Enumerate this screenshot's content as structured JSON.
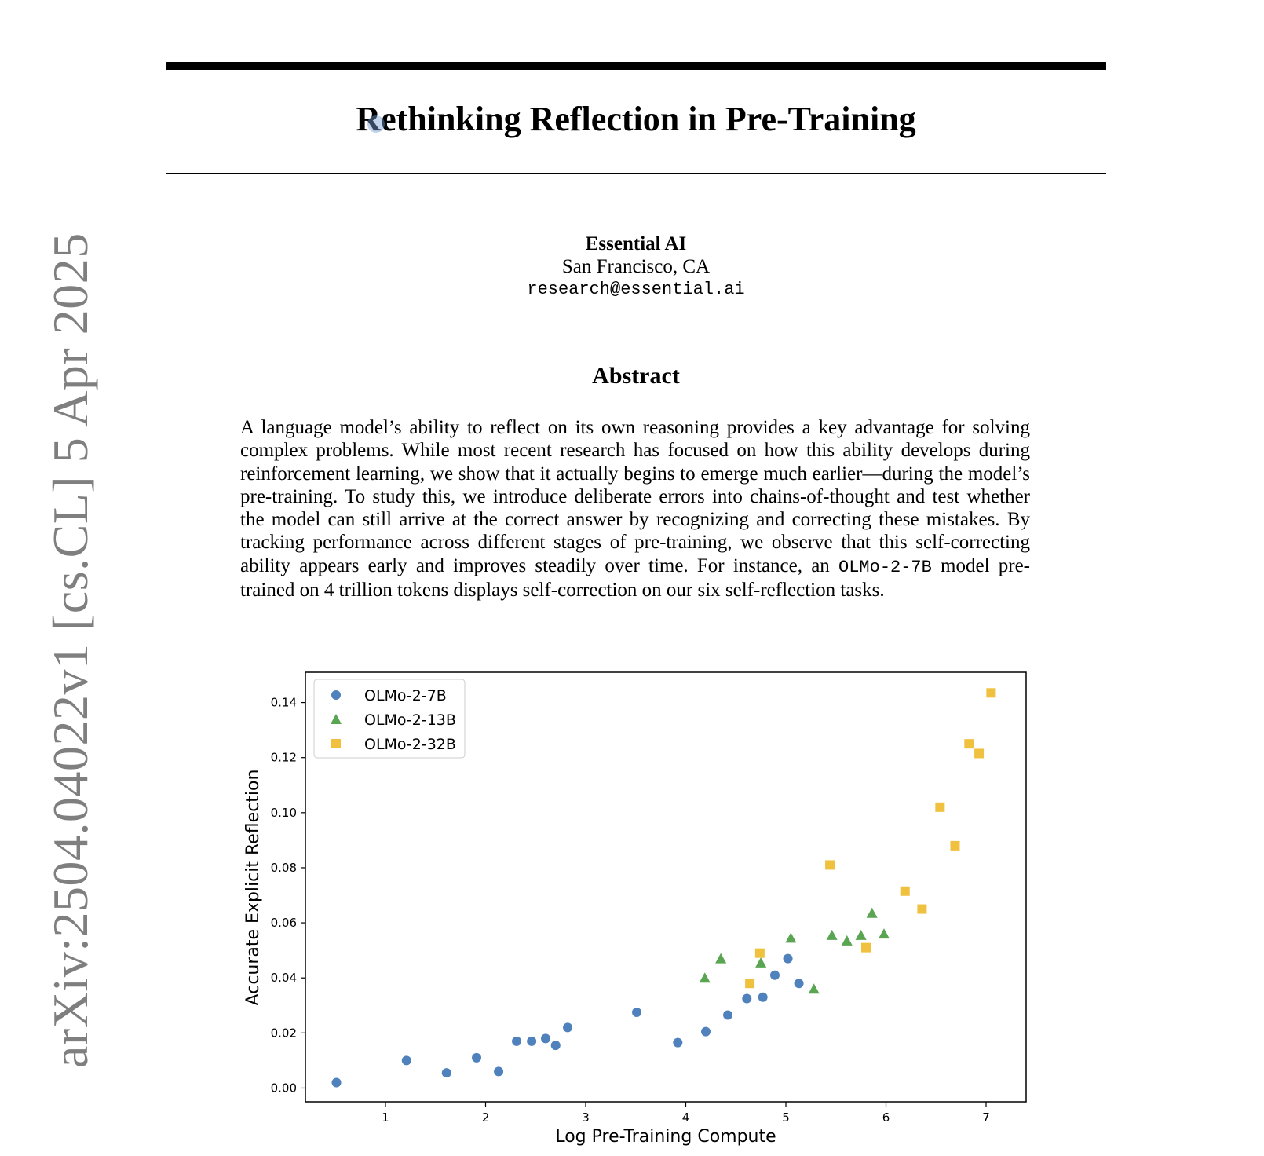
{
  "paper": {
    "title": "Rethinking Reflection in Pre-Training",
    "author_org": "Essential AI",
    "author_location": "San Francisco, CA",
    "author_email": "research@essential.ai",
    "abstract_heading": "Abstract",
    "abstract_part1": "A language model’s ability to reflect on its own reasoning provides a key advantage for solving complex problems. While most recent research has focused on how this ability develops during reinforcement learning, we show that it actually begins to emerge much earlier—during the model’s pre-training. To study this, we introduce deliberate errors into chains-of-thought and test whether the model can still arrive at the correct answer by recognizing and correcting these mistakes. By tracking performance across different stages of pre-training, we observe that this self-correcting ability appears early and improves steadily over time. For instance, an ",
    "abstract_code": "OLMo-2-7B",
    "abstract_part2": " model pre-trained on 4 trillion tokens displays self-correction on our six self-reflection tasks.",
    "arxiv_id": "arXiv:2504.04022v1  [cs.CL]  5 Apr 2025"
  },
  "chart_data": {
    "type": "scatter",
    "title": "",
    "xlabel": "Log Pre-Training Compute",
    "ylabel": "Accurate Explicit Reflection",
    "xlim": [
      0.2,
      7.4
    ],
    "ylim": [
      -0.005,
      0.151
    ],
    "xticks": [
      "1",
      "2",
      "3",
      "4",
      "5",
      "6",
      "7"
    ],
    "yticks": [
      "0.00",
      "0.02",
      "0.04",
      "0.06",
      "0.08",
      "0.10",
      "0.12",
      "0.14"
    ],
    "grid": false,
    "legend_position": "top-left",
    "series": [
      {
        "name": "OLMo-2-7B",
        "marker": "circle",
        "color": "#4f81bd",
        "points": [
          [
            0.51,
            0.002
          ],
          [
            1.21,
            0.01
          ],
          [
            1.61,
            0.0055
          ],
          [
            1.91,
            0.011
          ],
          [
            2.13,
            0.006
          ],
          [
            2.31,
            0.017
          ],
          [
            2.46,
            0.017
          ],
          [
            2.6,
            0.018
          ],
          [
            2.7,
            0.0155
          ],
          [
            2.82,
            0.022
          ],
          [
            3.51,
            0.0275
          ],
          [
            3.92,
            0.0165
          ],
          [
            4.2,
            0.0205
          ],
          [
            4.42,
            0.0265
          ],
          [
            4.61,
            0.0325
          ],
          [
            4.77,
            0.033
          ],
          [
            4.89,
            0.041
          ],
          [
            5.02,
            0.047
          ],
          [
            5.13,
            0.038
          ]
        ]
      },
      {
        "name": "OLMo-2-13B",
        "marker": "triangle",
        "color": "#5aa552",
        "points": [
          [
            4.19,
            0.04
          ],
          [
            4.35,
            0.047
          ],
          [
            4.75,
            0.0455
          ],
          [
            5.05,
            0.0545
          ],
          [
            5.28,
            0.036
          ],
          [
            5.46,
            0.0555
          ],
          [
            5.61,
            0.0535
          ],
          [
            5.75,
            0.0555
          ],
          [
            5.86,
            0.0635
          ],
          [
            5.98,
            0.056
          ]
        ]
      },
      {
        "name": "OLMo-2-32B",
        "marker": "square",
        "color": "#f0c13e",
        "points": [
          [
            4.64,
            0.038
          ],
          [
            4.74,
            0.049
          ],
          [
            5.44,
            0.081
          ],
          [
            5.8,
            0.051
          ],
          [
            6.19,
            0.0715
          ],
          [
            6.36,
            0.065
          ],
          [
            6.54,
            0.102
          ],
          [
            6.69,
            0.088
          ],
          [
            6.83,
            0.125
          ],
          [
            6.93,
            0.1215
          ],
          [
            7.05,
            0.1435
          ]
        ]
      }
    ]
  }
}
